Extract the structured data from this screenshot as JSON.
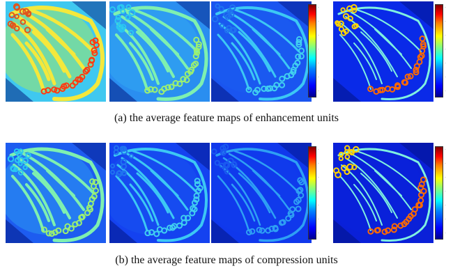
{
  "figure": {
    "row_a": {
      "caption": "(a)  the average feature maps of enhancement units",
      "panels": [
        {
          "intensity": "high",
          "base_color": "#3fc8f0"
        },
        {
          "intensity": "medium",
          "base_color": "#2a8ef0"
        },
        {
          "intensity": "low",
          "base_color": "#1a55f0"
        },
        {
          "intensity": "edges",
          "base_color": "#0a2ae8"
        }
      ]
    },
    "row_b": {
      "caption": "(b)  the average feature maps of compression units",
      "panels": [
        {
          "intensity": "medium",
          "base_color": "#1d5cf0"
        },
        {
          "intensity": "low",
          "base_color": "#1442f0"
        },
        {
          "intensity": "very-low",
          "base_color": "#1038ec"
        },
        {
          "intensity": "edges",
          "base_color": "#0a20d8"
        }
      ]
    },
    "colormap": "jet"
  }
}
